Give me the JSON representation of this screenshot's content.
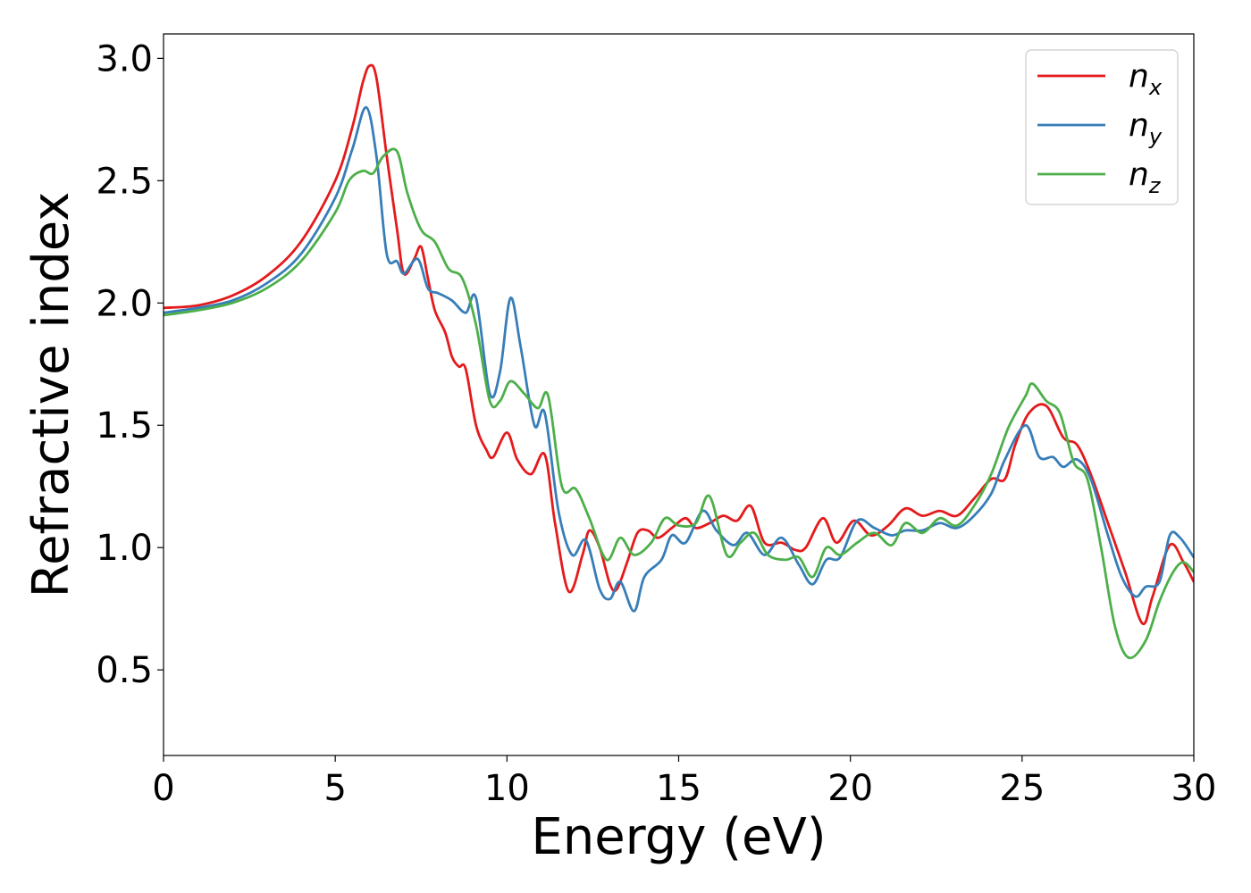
{
  "chart_data": {
    "type": "line",
    "xlabel": "Energy (eV)",
    "ylabel": "Refractive index",
    "xlim": [
      0,
      30
    ],
    "ylim": [
      0.15,
      3.1
    ],
    "xticks": [
      0,
      5,
      10,
      15,
      20,
      25,
      30
    ],
    "xtick_labels": [
      "0",
      "5",
      "10",
      "15",
      "20",
      "25",
      "30"
    ],
    "yticks": [
      0.5,
      1.0,
      1.5,
      2.0,
      2.5,
      3.0
    ],
    "ytick_labels": [
      "0.5",
      "1.0",
      "1.5",
      "2.0",
      "2.5",
      "3.0"
    ],
    "grid": false,
    "legend_position": "top-right",
    "series": [
      {
        "name": "n",
        "subscript": "x",
        "color": "#e41a1c",
        "points": [
          [
            0,
            1.98
          ],
          [
            1,
            1.99
          ],
          [
            2,
            2.03
          ],
          [
            3,
            2.11
          ],
          [
            4,
            2.25
          ],
          [
            5,
            2.5
          ],
          [
            5.5,
            2.72
          ],
          [
            5.8,
            2.9
          ],
          [
            6,
            2.97
          ],
          [
            6.2,
            2.92
          ],
          [
            6.5,
            2.6
          ],
          [
            6.8,
            2.3
          ],
          [
            7,
            2.12
          ],
          [
            7.3,
            2.18
          ],
          [
            7.5,
            2.23
          ],
          [
            7.7,
            2.1
          ],
          [
            7.9,
            1.97
          ],
          [
            8.2,
            1.88
          ],
          [
            8.4,
            1.78
          ],
          [
            8.6,
            1.74
          ],
          [
            8.8,
            1.73
          ],
          [
            9.1,
            1.5
          ],
          [
            9.4,
            1.4
          ],
          [
            9.6,
            1.37
          ],
          [
            10,
            1.47
          ],
          [
            10.3,
            1.36
          ],
          [
            10.7,
            1.3
          ],
          [
            11.1,
            1.38
          ],
          [
            11.4,
            1.1
          ],
          [
            11.8,
            0.82
          ],
          [
            12.2,
            0.97
          ],
          [
            12.4,
            1.07
          ],
          [
            12.7,
            1.0
          ],
          [
            13,
            0.85
          ],
          [
            13.2,
            0.83
          ],
          [
            13.5,
            0.94
          ],
          [
            13.8,
            1.06
          ],
          [
            14.1,
            1.07
          ],
          [
            14.4,
            1.04
          ],
          [
            14.8,
            1.08
          ],
          [
            15.2,
            1.12
          ],
          [
            15.5,
            1.08
          ],
          [
            15.9,
            1.1
          ],
          [
            16.3,
            1.13
          ],
          [
            16.7,
            1.11
          ],
          [
            17.1,
            1.17
          ],
          [
            17.5,
            1.02
          ],
          [
            18,
            1.02
          ],
          [
            18.4,
            0.99
          ],
          [
            18.7,
            1.0
          ],
          [
            19.2,
            1.12
          ],
          [
            19.6,
            1.02
          ],
          [
            20.1,
            1.11
          ],
          [
            20.6,
            1.05
          ],
          [
            21.1,
            1.09
          ],
          [
            21.6,
            1.16
          ],
          [
            22.1,
            1.13
          ],
          [
            22.6,
            1.15
          ],
          [
            23.1,
            1.13
          ],
          [
            23.6,
            1.2
          ],
          [
            24.1,
            1.28
          ],
          [
            24.5,
            1.28
          ],
          [
            24.8,
            1.42
          ],
          [
            25.2,
            1.55
          ],
          [
            25.7,
            1.58
          ],
          [
            26.2,
            1.45
          ],
          [
            26.6,
            1.42
          ],
          [
            27,
            1.3
          ],
          [
            27.5,
            1.1
          ],
          [
            28,
            0.9
          ],
          [
            28.5,
            0.69
          ],
          [
            28.8,
            0.8
          ],
          [
            29.3,
            1.01
          ],
          [
            29.7,
            0.94
          ],
          [
            30,
            0.86
          ]
        ]
      },
      {
        "name": "n",
        "subscript": "y",
        "color": "#377eb8",
        "points": [
          [
            0,
            1.96
          ],
          [
            1,
            1.98
          ],
          [
            2,
            2.01
          ],
          [
            3,
            2.08
          ],
          [
            4,
            2.2
          ],
          [
            5,
            2.43
          ],
          [
            5.5,
            2.63
          ],
          [
            5.9,
            2.8
          ],
          [
            6.2,
            2.6
          ],
          [
            6.5,
            2.2
          ],
          [
            6.8,
            2.17
          ],
          [
            7,
            2.12
          ],
          [
            7.4,
            2.18
          ],
          [
            7.7,
            2.06
          ],
          [
            8,
            2.04
          ],
          [
            8.4,
            2.01
          ],
          [
            8.8,
            1.96
          ],
          [
            9.1,
            2.02
          ],
          [
            9.5,
            1.63
          ],
          [
            9.8,
            1.72
          ],
          [
            10.1,
            2.02
          ],
          [
            10.4,
            1.82
          ],
          [
            10.8,
            1.5
          ],
          [
            11.1,
            1.55
          ],
          [
            11.5,
            1.15
          ],
          [
            11.9,
            0.97
          ],
          [
            12.3,
            1.03
          ],
          [
            12.7,
            0.83
          ],
          [
            13,
            0.79
          ],
          [
            13.3,
            0.86
          ],
          [
            13.7,
            0.74
          ],
          [
            14,
            0.88
          ],
          [
            14.5,
            0.95
          ],
          [
            14.8,
            1.05
          ],
          [
            15.2,
            1.02
          ],
          [
            15.7,
            1.15
          ],
          [
            16.1,
            1.07
          ],
          [
            16.6,
            1.01
          ],
          [
            17,
            1.06
          ],
          [
            17.5,
            0.97
          ],
          [
            18,
            1.04
          ],
          [
            18.5,
            0.93
          ],
          [
            18.9,
            0.85
          ],
          [
            19.3,
            0.95
          ],
          [
            19.7,
            0.96
          ],
          [
            20.2,
            1.11
          ],
          [
            20.7,
            1.08
          ],
          [
            21.2,
            1.05
          ],
          [
            21.6,
            1.07
          ],
          [
            22.1,
            1.07
          ],
          [
            22.6,
            1.1
          ],
          [
            23.1,
            1.08
          ],
          [
            23.6,
            1.13
          ],
          [
            24.1,
            1.22
          ],
          [
            24.5,
            1.36
          ],
          [
            25.1,
            1.5
          ],
          [
            25.5,
            1.37
          ],
          [
            25.9,
            1.37
          ],
          [
            26.2,
            1.33
          ],
          [
            26.6,
            1.36
          ],
          [
            27,
            1.28
          ],
          [
            27.5,
            1.05
          ],
          [
            27.9,
            0.88
          ],
          [
            28.3,
            0.8
          ],
          [
            28.6,
            0.84
          ],
          [
            29,
            0.86
          ],
          [
            29.3,
            1.05
          ],
          [
            29.6,
            1.04
          ],
          [
            30,
            0.96
          ]
        ]
      },
      {
        "name": "n",
        "subscript": "z",
        "color": "#4daf4a",
        "points": [
          [
            0,
            1.95
          ],
          [
            1,
            1.97
          ],
          [
            2,
            2.0
          ],
          [
            3,
            2.06
          ],
          [
            4,
            2.17
          ],
          [
            5,
            2.37
          ],
          [
            5.4,
            2.5
          ],
          [
            5.8,
            2.54
          ],
          [
            6.1,
            2.53
          ],
          [
            6.4,
            2.6
          ],
          [
            6.8,
            2.62
          ],
          [
            7.1,
            2.45
          ],
          [
            7.5,
            2.3
          ],
          [
            7.9,
            2.25
          ],
          [
            8.3,
            2.14
          ],
          [
            8.7,
            2.1
          ],
          [
            9.1,
            1.91
          ],
          [
            9.5,
            1.6
          ],
          [
            9.8,
            1.6
          ],
          [
            10.1,
            1.68
          ],
          [
            10.5,
            1.63
          ],
          [
            10.9,
            1.57
          ],
          [
            11.2,
            1.62
          ],
          [
            11.6,
            1.25
          ],
          [
            12,
            1.24
          ],
          [
            12.4,
            1.12
          ],
          [
            12.9,
            0.95
          ],
          [
            13.3,
            1.04
          ],
          [
            13.7,
            0.97
          ],
          [
            14.2,
            1.02
          ],
          [
            14.6,
            1.12
          ],
          [
            15,
            1.09
          ],
          [
            15.5,
            1.1
          ],
          [
            15.9,
            1.21
          ],
          [
            16.4,
            0.97
          ],
          [
            16.8,
            1.02
          ],
          [
            17.2,
            1.06
          ],
          [
            17.6,
            0.97
          ],
          [
            18.1,
            0.95
          ],
          [
            18.5,
            0.96
          ],
          [
            18.9,
            0.88
          ],
          [
            19.3,
            1.0
          ],
          [
            19.7,
            0.97
          ],
          [
            20.2,
            1.02
          ],
          [
            20.7,
            1.06
          ],
          [
            21.2,
            1.01
          ],
          [
            21.6,
            1.1
          ],
          [
            22.1,
            1.06
          ],
          [
            22.6,
            1.12
          ],
          [
            23.1,
            1.09
          ],
          [
            23.6,
            1.17
          ],
          [
            24.1,
            1.3
          ],
          [
            24.6,
            1.49
          ],
          [
            25.1,
            1.62
          ],
          [
            25.3,
            1.67
          ],
          [
            25.7,
            1.6
          ],
          [
            26.1,
            1.55
          ],
          [
            26.5,
            1.35
          ],
          [
            26.9,
            1.28
          ],
          [
            27.3,
            1.0
          ],
          [
            27.7,
            0.68
          ],
          [
            28.1,
            0.55
          ],
          [
            28.6,
            0.62
          ],
          [
            29,
            0.78
          ],
          [
            29.4,
            0.9
          ],
          [
            29.7,
            0.94
          ],
          [
            30,
            0.9
          ]
        ]
      }
    ]
  }
}
